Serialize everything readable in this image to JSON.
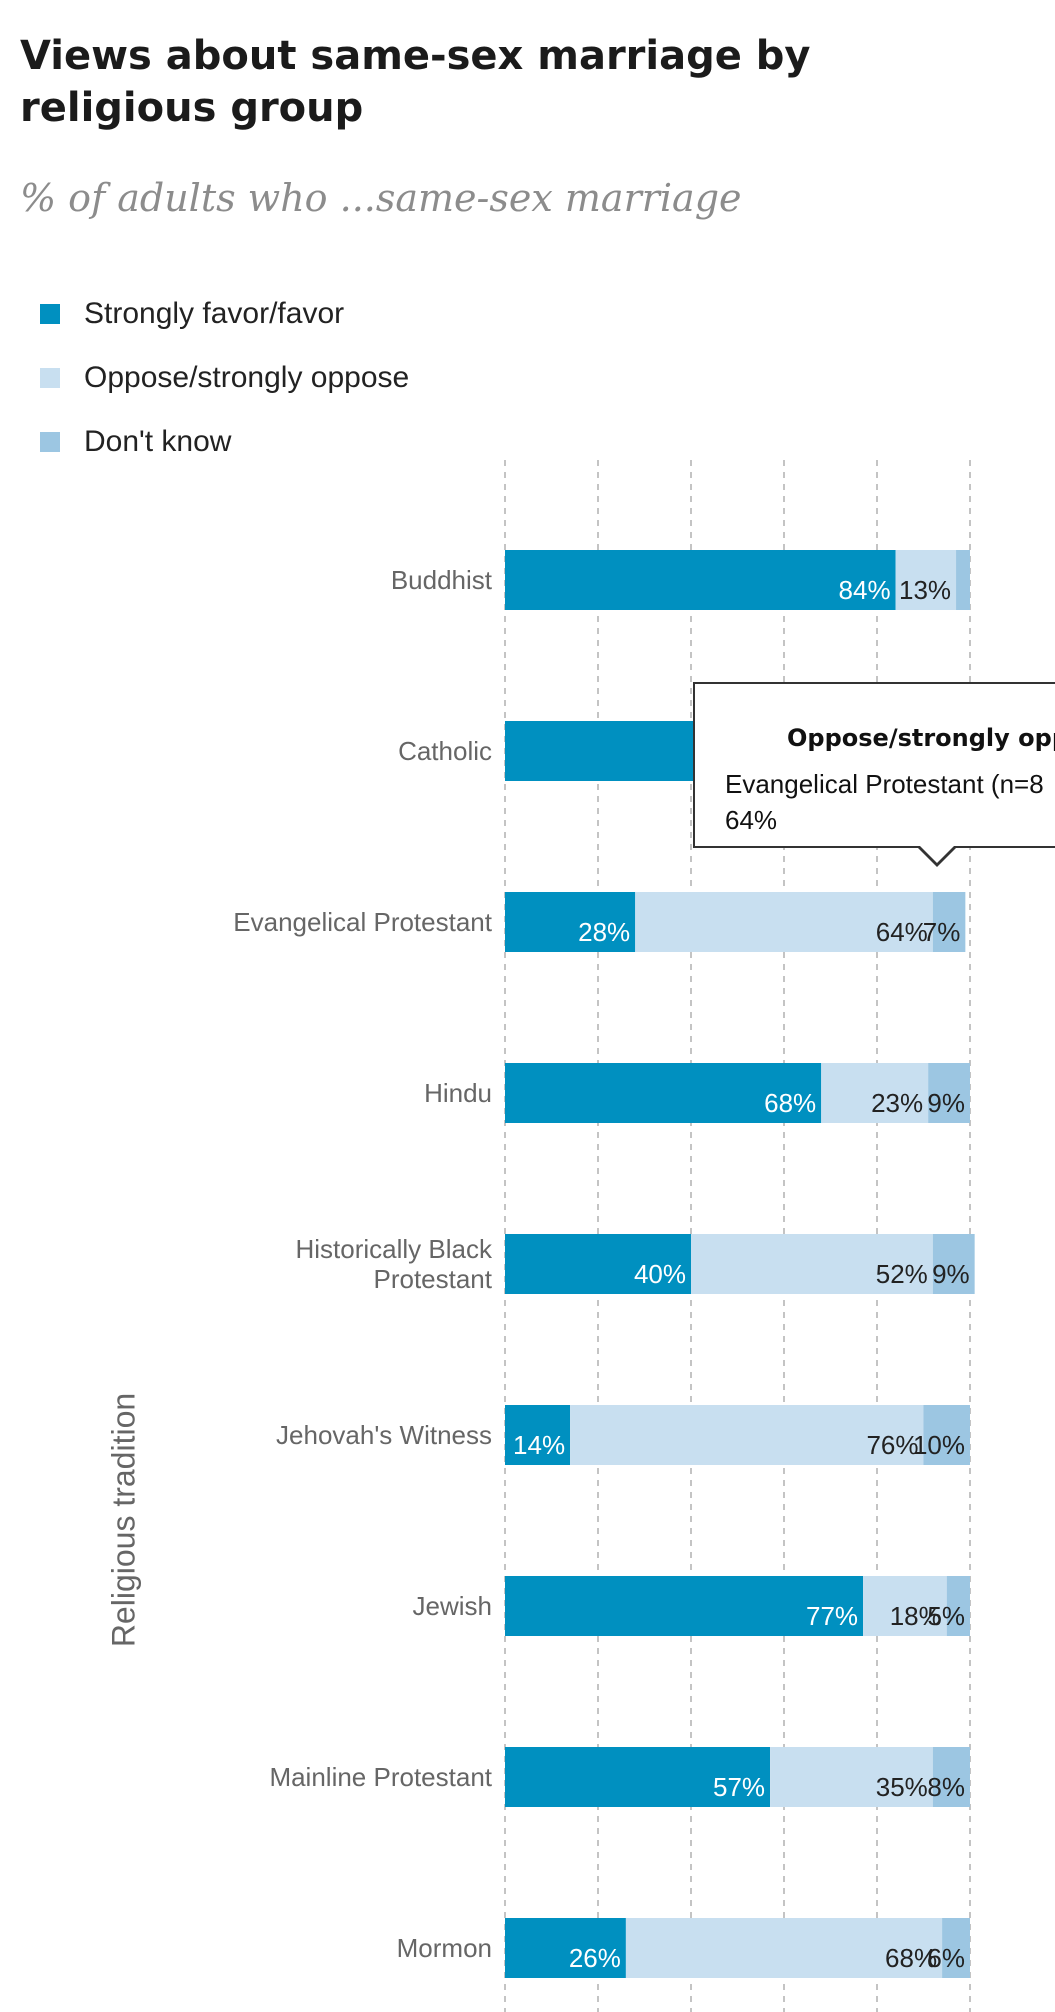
{
  "title": "Views about same-sex marriage by religious group",
  "subtitle": "% of adults who ...same-sex marriage",
  "legend": [
    {
      "label": "Strongly favor/favor",
      "color": "#0090c0"
    },
    {
      "label": "Oppose/strongly oppose",
      "color": "#c8dff0"
    },
    {
      "label": "Don't know",
      "color": "#9cc6e2"
    }
  ],
  "tooltip": {
    "title": "Oppose/strongly oppo",
    "line1": "Evangelical Protestant (n=8",
    "line2": "64%"
  },
  "chart_data": {
    "type": "bar",
    "orientation": "horizontal",
    "stacked": true,
    "ylabel": "Religious tradition",
    "xlim": [
      0,
      100
    ],
    "grid": true,
    "legend_position": "top-left",
    "categories": [
      [
        "Buddhist"
      ],
      [
        "Catholic"
      ],
      [
        "Evangelical Protestant"
      ],
      [
        "Hindu"
      ],
      [
        "Historically Black",
        "Protestant"
      ],
      [
        "Jehovah's Witness"
      ],
      [
        "Jewish"
      ],
      [
        "Mainline Protestant"
      ],
      [
        "Mormon"
      ]
    ],
    "series": [
      {
        "name": "Strongly favor/favor",
        "color": "#0090c0",
        "label_color": "#ffffff",
        "values": [
          84,
          57,
          28,
          68,
          40,
          14,
          77,
          57,
          26
        ],
        "labels": [
          "84%",
          "",
          "28%",
          "68%",
          "40%",
          "14%",
          "77%",
          "57%",
          "26%"
        ]
      },
      {
        "name": "Oppose/strongly oppose",
        "color": "#c8dff0",
        "label_color": "#222222",
        "values": [
          13,
          37,
          64,
          23,
          52,
          76,
          18,
          35,
          68
        ],
        "labels": [
          "13%",
          "",
          "64%",
          "23%",
          "52%",
          "76%",
          "18%",
          "35%",
          "68%"
        ]
      },
      {
        "name": "Don't know",
        "color": "#9cc6e2",
        "label_color": "#222222",
        "values": [
          3,
          6,
          7,
          9,
          9,
          10,
          5,
          8,
          6
        ],
        "labels": [
          "",
          "",
          "7%",
          "9%",
          "9%",
          "10%",
          "5%",
          "8%",
          "6%"
        ]
      }
    ]
  }
}
